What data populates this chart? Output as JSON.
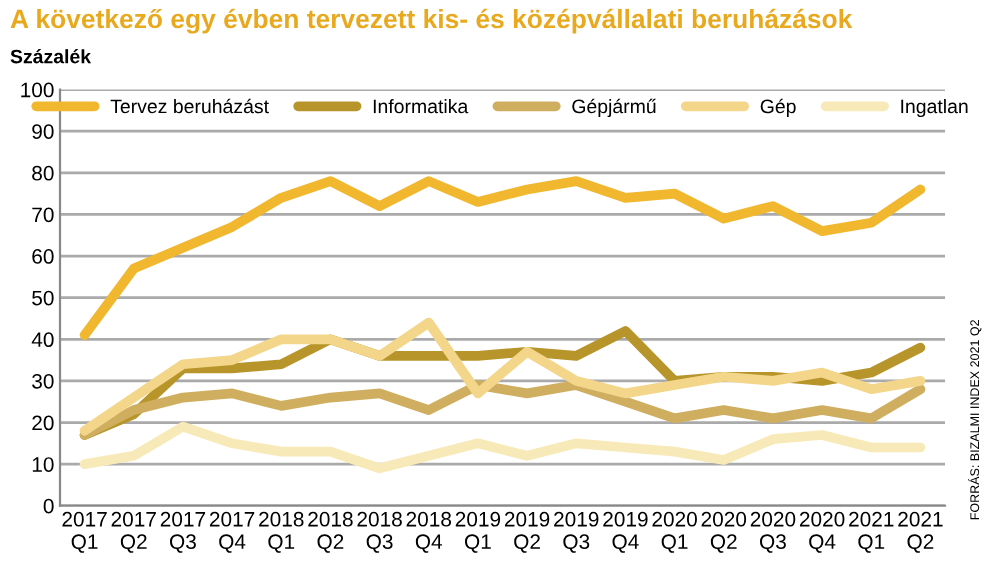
{
  "chart_data": {
    "type": "line",
    "title": "A következő egy évben tervezett kis- és középvállalati beruházások",
    "ylabel": "Százalék",
    "categories": [
      "2017\nQ1",
      "2017\nQ2",
      "2017\nQ3",
      "2017\nQ4",
      "2018\nQ1",
      "2018\nQ2",
      "2018\nQ3",
      "2018\nQ4",
      "2019\nQ1",
      "2019\nQ2",
      "2019\nQ3",
      "2019\nQ4",
      "2020\nQ1",
      "2020\nQ2",
      "2020\nQ3",
      "2020\nQ4",
      "2021\nQ1",
      "2021\nQ2"
    ],
    "series": [
      {
        "name": "Tervez beruházást",
        "color": "#f0b72f",
        "values": [
          41,
          57,
          62,
          67,
          74,
          78,
          72,
          78,
          73,
          76,
          78,
          74,
          75,
          69,
          72,
          66,
          68,
          76
        ]
      },
      {
        "name": "Informatika",
        "color": "#b8952a",
        "values": [
          17,
          22,
          33,
          33,
          34,
          40,
          36,
          36,
          36,
          37,
          36,
          42,
          30,
          31,
          31,
          30,
          32,
          38
        ]
      },
      {
        "name": "Gépjármű",
        "color": "#cfae60",
        "values": [
          17,
          23,
          26,
          27,
          24,
          26,
          27,
          23,
          29,
          27,
          29,
          25,
          21,
          23,
          21,
          23,
          21,
          28
        ]
      },
      {
        "name": "Gép",
        "color": "#f3d68a",
        "values": [
          18,
          26,
          34,
          35,
          40,
          40,
          36,
          44,
          27,
          37,
          30,
          27,
          29,
          31,
          30,
          32,
          28,
          30
        ]
      },
      {
        "name": "Ingatlan",
        "color": "#f8eab8",
        "values": [
          10,
          12,
          19,
          15,
          13,
          13,
          9,
          12,
          15,
          12,
          15,
          14,
          13,
          11,
          16,
          17,
          14,
          14
        ]
      }
    ],
    "ylim": [
      0,
      100
    ],
    "yticks": [
      0,
      10,
      20,
      30,
      40,
      50,
      60,
      70,
      80,
      90,
      100
    ],
    "grid": "y",
    "legend": "top",
    "marker": "none",
    "line_style": "solid",
    "annotations": [
      "FORRÁS: BIZALMI INDEX 2021 Q2"
    ]
  }
}
